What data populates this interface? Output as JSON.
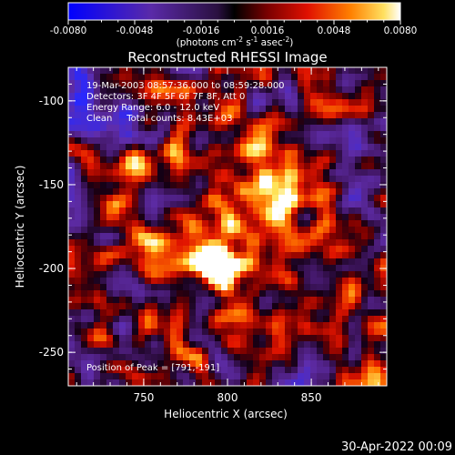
{
  "colorbar": {
    "tick_labels": [
      "-0.0080",
      "-0.0048",
      "-0.0016",
      "0.0016",
      "0.0048",
      "0.0080"
    ],
    "range": [
      -0.008,
      0.008
    ],
    "units_main": "(photons cm",
    "units_sup1": "-2",
    "units_mid1": " s",
    "units_sup2": "-1",
    "units_mid2": " asec",
    "units_sup3": "-2",
    "units_end": ")"
  },
  "chart_data": {
    "type": "heatmap",
    "title": "Reconstructed RHESSI Image",
    "xlabel": "Heliocentric X (arcsec)",
    "ylabel": "Heliocentric Y (arcsec)",
    "xlim": [
      705,
      895
    ],
    "ylim": [
      -270,
      -80
    ],
    "x_ticks": [
      750,
      800,
      850
    ],
    "y_ticks": [
      -250,
      -200,
      -150,
      -100
    ],
    "grid": false,
    "sources": [
      {
        "x": 791,
        "y": -191,
        "peak": 0.008
      },
      {
        "x": 828,
        "y": -150,
        "peak": 0.0068
      }
    ],
    "annotations": [
      "19-Mar-2003 08:57:36.000 to 08:59:28.000",
      "Detectors: 3F 4F 5F 6F 7F 8F, Att 0",
      "Energy Range: 6.0 - 12.0 keV",
      "Clean     Total counts: 8.43E+03"
    ],
    "peak_label": "Position of Peak = [791,-191]",
    "colors": {
      "negative": "#0000ff",
      "zero": "#000000",
      "positive_mid": "#ff3000",
      "positive_max": "#ffffff"
    }
  },
  "timestamp": "30-Apr-2022 00:09"
}
